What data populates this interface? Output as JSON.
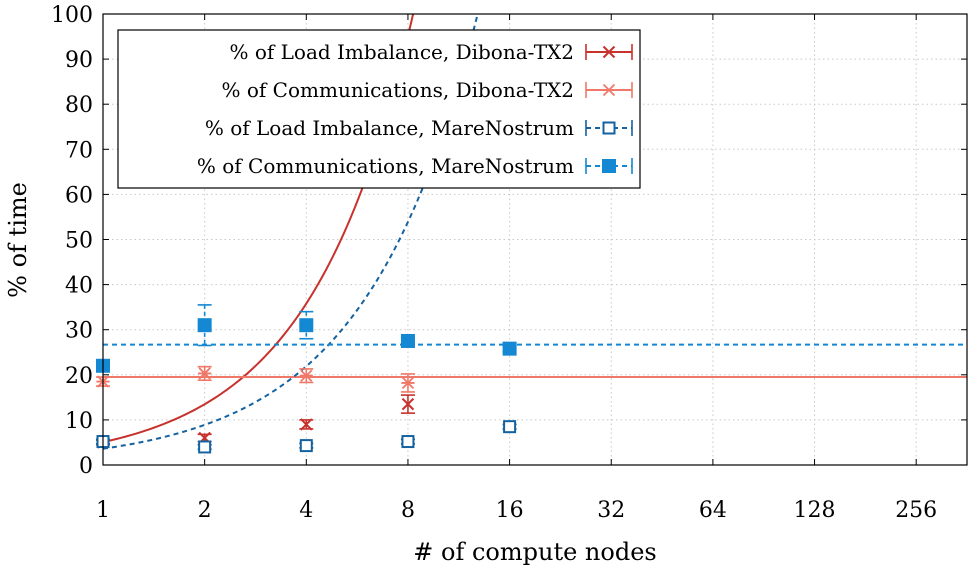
{
  "chart_data": {
    "type": "scatter",
    "xlabel": "# of compute nodes",
    "ylabel": "% of time",
    "x_scale": "log2",
    "xlim": [
      1,
      362
    ],
    "ylim": [
      0,
      100
    ],
    "xticks": [
      1,
      2,
      4,
      8,
      16,
      32,
      64,
      128,
      256
    ],
    "xtick_labels": [
      "1",
      "2",
      "4",
      "8",
      "16",
      "32",
      "64",
      "128",
      "256"
    ],
    "yticks": [
      0,
      10,
      20,
      30,
      40,
      50,
      60,
      70,
      80,
      90,
      100
    ],
    "grid": true,
    "legend_position": "top-left",
    "series": [
      {
        "name": "% of Load Imbalance, Dibona-TX2",
        "color": "#c8322d",
        "marker": "x",
        "line_style": "solid",
        "x": [
          1,
          2,
          4,
          8
        ],
        "y": [
          5,
          6,
          9,
          13.5
        ],
        "err": [
          0.5,
          0.8,
          1,
          2
        ],
        "fit": {
          "form": "exponential",
          "a": 5.07,
          "b": 1.41
        }
      },
      {
        "name": "% of Communications, Dibona-TX2",
        "color": "#f07868",
        "marker": "asterisk",
        "line_style": "solid",
        "x": [
          1,
          2,
          4,
          8
        ],
        "y": [
          18.5,
          20.3,
          19.8,
          18.2
        ],
        "err": [
          1,
          1.5,
          1.5,
          2
        ],
        "fit": {
          "form": "constant",
          "value": 19.5
        }
      },
      {
        "name": "% of Load Imbalance, MareNostrum",
        "color": "#1462a0",
        "marker": "square-open",
        "line_style": "dashed",
        "x": [
          1,
          2,
          4,
          8,
          16
        ],
        "y": [
          5.2,
          4,
          4.3,
          5.2,
          8.5
        ],
        "err": [
          0.5,
          0.5,
          0.5,
          0.5,
          0.5
        ],
        "fit": {
          "form": "exponential",
          "a": 3.61,
          "b": 1.3
        }
      },
      {
        "name": "% of Communications, MareNostrum",
        "color": "#1488d2",
        "marker": "square-filled",
        "line_style": "dashed",
        "x": [
          1,
          2,
          4,
          8,
          16
        ],
        "y": [
          22,
          31,
          31,
          27.5,
          25.8
        ],
        "err": [
          0.5,
          4.5,
          3,
          0.8,
          0.8
        ],
        "fit": {
          "form": "constant",
          "value": 26.7
        }
      }
    ]
  }
}
